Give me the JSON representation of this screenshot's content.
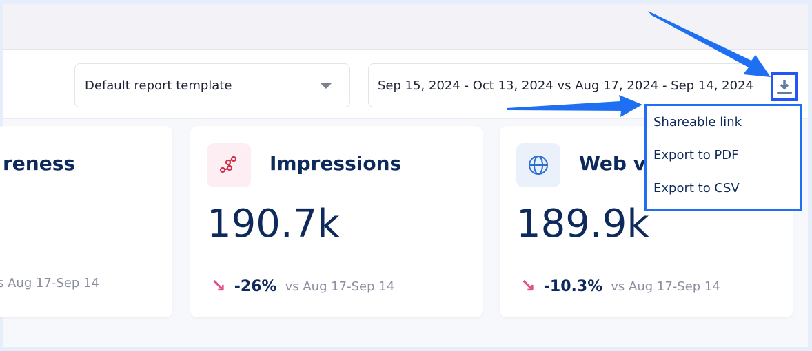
{
  "toolbar": {
    "template_select": "Default report template",
    "date_range": "Sep 15, 2024 - Oct 13, 2024 vs Aug 17, 2024 - Sep 14, 2024"
  },
  "download_menu": {
    "items": [
      "Shareable link",
      "Export to PDF",
      "Export to CSV"
    ]
  },
  "cards": [
    {
      "title": "reness",
      "value": "",
      "delta": "",
      "compare": "s Aug 17-Sep 14"
    },
    {
      "title": "Impressions",
      "value": "190.7k",
      "delta": "-26%",
      "compare": "vs Aug 17-Sep 14",
      "icon": "share-nodes-icon"
    },
    {
      "title": "Web vi",
      "value": "189.9k",
      "delta": "-10.3%",
      "compare": "vs Aug 17-Sep 14",
      "icon": "globe-icon"
    }
  ],
  "colors": {
    "accent": "#2456f5",
    "title": "#0e2a5c",
    "down": "#e0508a"
  }
}
